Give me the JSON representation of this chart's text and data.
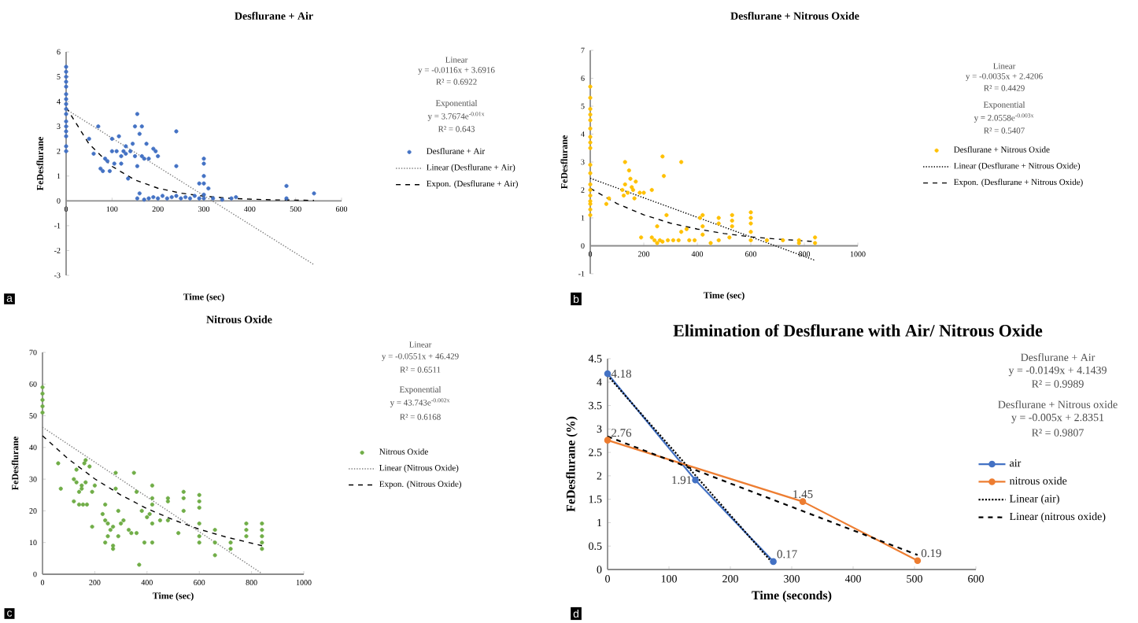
{
  "chart_data": [
    {
      "type": "scatter",
      "title": "Desflurane + Air",
      "xlabel": "Time (sec)",
      "ylabel": "FeDesflurane",
      "xlim": [
        0,
        600
      ],
      "xticks": [
        0,
        100,
        200,
        300,
        400,
        500,
        600
      ],
      "ylim": [
        -3,
        6
      ],
      "yticks": [
        -3,
        -2,
        -1,
        0,
        1,
        2,
        3,
        4,
        5,
        6
      ],
      "legend": "right",
      "annotations": [
        "Linear",
        "y = -0.0116x + 3.6916",
        "R² = 0.6922",
        "Exponential",
        "y = 3.7674e$^{-0.01x}$",
        "R² = 0.643",
        "a"
      ],
      "series": [
        {
          "name": "Desflurane + Air",
          "color": "#4472c4",
          "marker": "circle",
          "x": [
            0,
            0,
            0,
            0,
            0,
            0,
            0,
            0,
            0,
            0,
            0,
            0,
            0,
            0,
            0,
            0,
            50,
            60,
            70,
            75,
            80,
            85,
            90,
            95,
            100,
            100,
            105,
            110,
            115,
            120,
            120,
            125,
            130,
            130,
            135,
            140,
            145,
            150,
            150,
            155,
            155,
            160,
            165,
            165,
            170,
            175,
            180,
            190,
            195,
            200,
            240,
            240,
            300,
            300,
            300,
            300,
            290,
            310,
            155,
            160,
            170,
            180,
            190,
            200,
            210,
            220,
            230,
            240,
            250,
            260,
            270,
            280,
            290,
            300,
            320,
            340,
            360,
            370,
            480,
            480,
            540,
            300
          ],
          "values": [
            2.0,
            2.2,
            2.6,
            2.8,
            3.0,
            3.2,
            3.5,
            3.7,
            3.9,
            4.1,
            4.3,
            4.6,
            4.8,
            5.0,
            5.2,
            5.4,
            2.5,
            1.9,
            3.0,
            1.3,
            1.2,
            1.7,
            1.6,
            1.2,
            2.5,
            2.0,
            1.5,
            2.0,
            2.6,
            1.8,
            1.5,
            2.0,
            2.2,
            1.9,
            0.9,
            2.0,
            2.3,
            3.0,
            1.8,
            3.5,
            1.4,
            2.7,
            3.0,
            1.8,
            1.7,
            2.3,
            1.7,
            2.1,
            2.0,
            1.8,
            2.8,
            1.4,
            1.7,
            1.5,
            1.0,
            0.7,
            0.7,
            0.5,
            0.1,
            0.3,
            0.05,
            0.1,
            0.15,
            0.1,
            0.2,
            0.1,
            0.15,
            0.2,
            0.1,
            0.15,
            0.1,
            0.2,
            0.1,
            0.1,
            0.1,
            0.05,
            0.1,
            0.15,
            0.6,
            0.1,
            0.3,
            0.25
          ]
        },
        {
          "name": "Linear (Desflurane + Air)",
          "type": "line",
          "color": "#7f7f7f",
          "line_style": "dotted",
          "marker": "none",
          "x": [
            0,
            540
          ],
          "values": [
            3.69,
            -2.57
          ]
        },
        {
          "name": "Expon. (Desflurane + Air)",
          "type": "line",
          "color": "#000000",
          "line_style": "dashed",
          "marker": "none",
          "x": [
            0,
            50,
            100,
            150,
            200,
            250,
            300,
            350,
            400,
            450,
            500,
            540
          ],
          "values": [
            3.77,
            2.29,
            1.39,
            0.84,
            0.51,
            0.31,
            0.19,
            0.11,
            0.07,
            0.04,
            0.03,
            0.02
          ]
        }
      ]
    },
    {
      "type": "scatter",
      "title": "Desflurane + Nitrous Oxide",
      "xlabel": "Time (sec)",
      "ylabel": "FeDesflurane",
      "xlim": [
        0,
        1000
      ],
      "xticks": [
        0,
        200,
        400,
        600,
        800,
        1000
      ],
      "ylim": [
        -1,
        7
      ],
      "yticks": [
        -1,
        0,
        1,
        2,
        3,
        4,
        5,
        6,
        7
      ],
      "legend": "right",
      "annotations": [
        "Linear",
        "y = -0.0035x + 2.4206",
        "R² = 0.4429",
        "Exponential",
        "y = 2.0558e$^{-0.003x}$",
        "R² = 0.5407",
        "b"
      ],
      "series": [
        {
          "name": "Desflurane + Nitrous Oxide",
          "color": "#ffc000",
          "marker": "circle",
          "x": [
            0,
            0,
            0,
            0,
            0,
            0,
            0,
            0,
            0,
            0,
            0,
            0,
            0,
            0,
            0,
            0,
            0,
            0,
            60,
            70,
            130,
            120,
            125,
            130,
            140,
            145,
            150,
            155,
            160,
            165,
            170,
            185,
            200,
            230,
            250,
            270,
            275,
            285,
            340,
            190,
            230,
            240,
            250,
            260,
            270,
            290,
            310,
            330,
            340,
            360,
            370,
            390,
            410,
            420,
            420,
            420,
            450,
            480,
            480,
            480,
            530,
            530,
            530,
            520,
            600,
            600,
            600,
            600,
            600,
            660,
            720,
            780,
            780,
            840,
            840
          ],
          "values": [
            1.1,
            1.3,
            1.5,
            1.6,
            1.8,
            2.0,
            2.2,
            2.6,
            2.9,
            3.5,
            3.7,
            3.9,
            4.2,
            4.5,
            4.7,
            4.9,
            5.3,
            5.7,
            1.5,
            1.7,
            3.0,
            2.0,
            1.8,
            2.2,
            1.9,
            2.7,
            2.4,
            2.1,
            2.0,
            1.7,
            2.3,
            1.9,
            1.9,
            2.0,
            0.7,
            3.2,
            2.5,
            1.1,
            3.0,
            0.3,
            0.3,
            0.2,
            0.1,
            0.2,
            0.15,
            0.2,
            0.2,
            0.2,
            0.5,
            0.6,
            0.2,
            0.2,
            1.0,
            1.1,
            0.7,
            0.4,
            0.1,
            1.0,
            0.8,
            0.2,
            1.1,
            0.9,
            0.7,
            0.3,
            1.2,
            1.0,
            0.8,
            0.5,
            0.2,
            0.2,
            0.2,
            0.2,
            0.1,
            0.3,
            0.1
          ]
        },
        {
          "name": "Linear (Desflurane + Nitrous Oxide)",
          "type": "line",
          "color": "#000000",
          "line_style": "dotted",
          "marker": "none",
          "x": [
            0,
            840
          ],
          "values": [
            2.42,
            -0.52
          ]
        },
        {
          "name": "Expon. (Desflurane + Nitrous Oxide)",
          "type": "line",
          "color": "#000000",
          "line_style": "dashed",
          "marker": "none",
          "x": [
            0,
            100,
            200,
            300,
            400,
            500,
            600,
            700,
            840
          ],
          "values": [
            2.06,
            1.51,
            1.11,
            0.81,
            0.6,
            0.44,
            0.32,
            0.24,
            0.15
          ]
        }
      ]
    },
    {
      "type": "scatter",
      "title": "Nitrous Oxide",
      "xlabel": "Time (sec)",
      "ylabel": "FeDesflurane",
      "xlim": [
        0,
        1000
      ],
      "xticks": [
        0,
        200,
        400,
        600,
        800,
        1000
      ],
      "ylim": [
        0,
        70
      ],
      "yticks": [
        0,
        10,
        20,
        30,
        40,
        50,
        60,
        70
      ],
      "legend": "right",
      "annotations": [
        "Linear",
        "y = -0.0551x + 46.429",
        "R² = 0.6511",
        "Exponential",
        "y = 43.743e$^{-0.002x}$",
        "R² = 0.6168",
        "c"
      ],
      "series": [
        {
          "name": "Nitrous Oxide",
          "color": "#70ad47",
          "marker": "circle",
          "x": [
            0,
            0,
            0,
            0,
            0,
            60,
            70,
            120,
            120,
            130,
            130,
            140,
            140,
            150,
            150,
            155,
            160,
            165,
            165,
            170,
            180,
            190,
            190,
            200,
            230,
            240,
            240,
            240,
            250,
            250,
            260,
            270,
            270,
            270,
            280,
            280,
            290,
            290,
            300,
            310,
            330,
            340,
            350,
            360,
            360,
            370,
            380,
            390,
            400,
            410,
            420,
            420,
            420,
            420,
            420,
            450,
            480,
            480,
            480,
            520,
            540,
            540,
            540,
            600,
            600,
            600,
            600,
            600,
            600,
            660,
            660,
            660,
            720,
            720,
            780,
            780,
            780,
            840,
            840,
            840,
            840,
            840
          ],
          "values": [
            51,
            53,
            55,
            57,
            59,
            35,
            27,
            30,
            23,
            29,
            33,
            26,
            22,
            28,
            27,
            22,
            35,
            36,
            29,
            22,
            34,
            15,
            26,
            28,
            19,
            22,
            17,
            10,
            16,
            12,
            14,
            9,
            8,
            15,
            32,
            27,
            20,
            12,
            16,
            17,
            14,
            13,
            32,
            13,
            26,
            3,
            20,
            10,
            18,
            19,
            28,
            24,
            22,
            16,
            10,
            17,
            24,
            23,
            17,
            13,
            26,
            24,
            20,
            25,
            23,
            21,
            16,
            12,
            10,
            14,
            10,
            6,
            10,
            8,
            16,
            14,
            12,
            16,
            14,
            12,
            10,
            8
          ]
        },
        {
          "name": "Linear (Nitrous Oxide)",
          "type": "line",
          "color": "#7f7f7f",
          "line_style": "dotted",
          "marker": "none",
          "x": [
            0,
            840
          ],
          "values": [
            46.4,
            0.2
          ]
        },
        {
          "name": "Expon. (Nitrous Oxide)",
          "type": "line",
          "color": "#000000",
          "line_style": "dashed",
          "marker": "none",
          "x": [
            0,
            100,
            200,
            300,
            400,
            500,
            600,
            700,
            840
          ],
          "values": [
            43.7,
            36.3,
            30.1,
            25.0,
            20.7,
            17.2,
            14.2,
            11.8,
            9.0
          ]
        }
      ]
    },
    {
      "type": "line",
      "title": "Elimination of Desflurane with Air/ Nitrous Oxide",
      "xlabel": "Time (seconds)",
      "ylabel": "FeDesflurane (%)",
      "xlim": [
        0,
        600
      ],
      "xticks": [
        0,
        100,
        200,
        300,
        400,
        500,
        600
      ],
      "ylim": [
        0,
        4.5
      ],
      "yticks": [
        0,
        0.5,
        1,
        1.5,
        2,
        2.5,
        3,
        3.5,
        4,
        4.5
      ],
      "legend": "right",
      "annotations": [
        "Desflurane + Air",
        "y = -0.0149x + 4.1439",
        "R² = 0.9989",
        "Desflurane + Nitrous oxide",
        "y = -0.005x + 2.8351",
        "R² = 0.9807",
        "d"
      ],
      "series": [
        {
          "name": "air",
          "color": "#4472c4",
          "marker": "circle",
          "line_style": "solid",
          "x": [
            0,
            143,
            270
          ],
          "values": [
            4.18,
            1.91,
            0.17
          ],
          "value_labels": [
            "4.18",
            "1.91",
            "0.17"
          ]
        },
        {
          "name": "nitrous oxide",
          "color": "#ed7d31",
          "marker": "circle",
          "line_style": "solid",
          "x": [
            0,
            318,
            505
          ],
          "values": [
            2.76,
            1.45,
            0.19
          ],
          "value_labels": [
            "2.76",
            "1.45",
            "0.19"
          ]
        },
        {
          "name": "Linear (air)",
          "color": "#000000",
          "line_style": "dotted",
          "marker": "none",
          "x": [
            0,
            270
          ],
          "values": [
            4.14,
            0.12
          ]
        },
        {
          "name": "Linear (nitrous oxide)",
          "color": "#000000",
          "line_style": "dashed",
          "marker": "none",
          "x": [
            0,
            505
          ],
          "values": [
            2.84,
            0.31
          ]
        }
      ]
    }
  ]
}
